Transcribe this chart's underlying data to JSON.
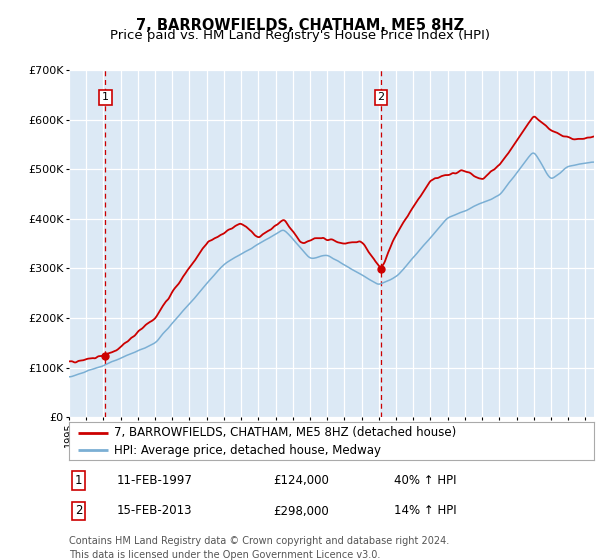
{
  "title": "7, BARROWFIELDS, CHATHAM, ME5 8HZ",
  "subtitle": "Price paid vs. HM Land Registry's House Price Index (HPI)",
  "ylim": [
    0,
    700000
  ],
  "yticks": [
    0,
    100000,
    200000,
    300000,
    400000,
    500000,
    600000,
    700000
  ],
  "ytick_labels": [
    "£0",
    "£100K",
    "£200K",
    "£300K",
    "£400K",
    "£500K",
    "£600K",
    "£700K"
  ],
  "xlim_start": 1995,
  "xlim_end": 2025.5,
  "plot_bg_color": "#dce9f5",
  "fig_bg_color": "#ffffff",
  "red_line_color": "#cc0000",
  "blue_line_color": "#7bafd4",
  "transaction1_year": 1997.115,
  "transaction1_price": 124000,
  "transaction2_year": 2013.123,
  "transaction2_price": 298000,
  "transaction1_date": "11-FEB-1997",
  "transaction2_date": "15-FEB-2013",
  "transaction1_pct": "40% ↑ HPI",
  "transaction2_pct": "14% ↑ HPI",
  "legend_label1": "7, BARROWFIELDS, CHATHAM, ME5 8HZ (detached house)",
  "legend_label2": "HPI: Average price, detached house, Medway",
  "footer": "Contains HM Land Registry data © Crown copyright and database right 2024.\nThis data is licensed under the Open Government Licence v3.0.",
  "title_fontsize": 10.5,
  "subtitle_fontsize": 9.5,
  "tick_fontsize": 8,
  "legend_fontsize": 8.5,
  "annotation_fontsize": 8.5,
  "footer_fontsize": 7
}
